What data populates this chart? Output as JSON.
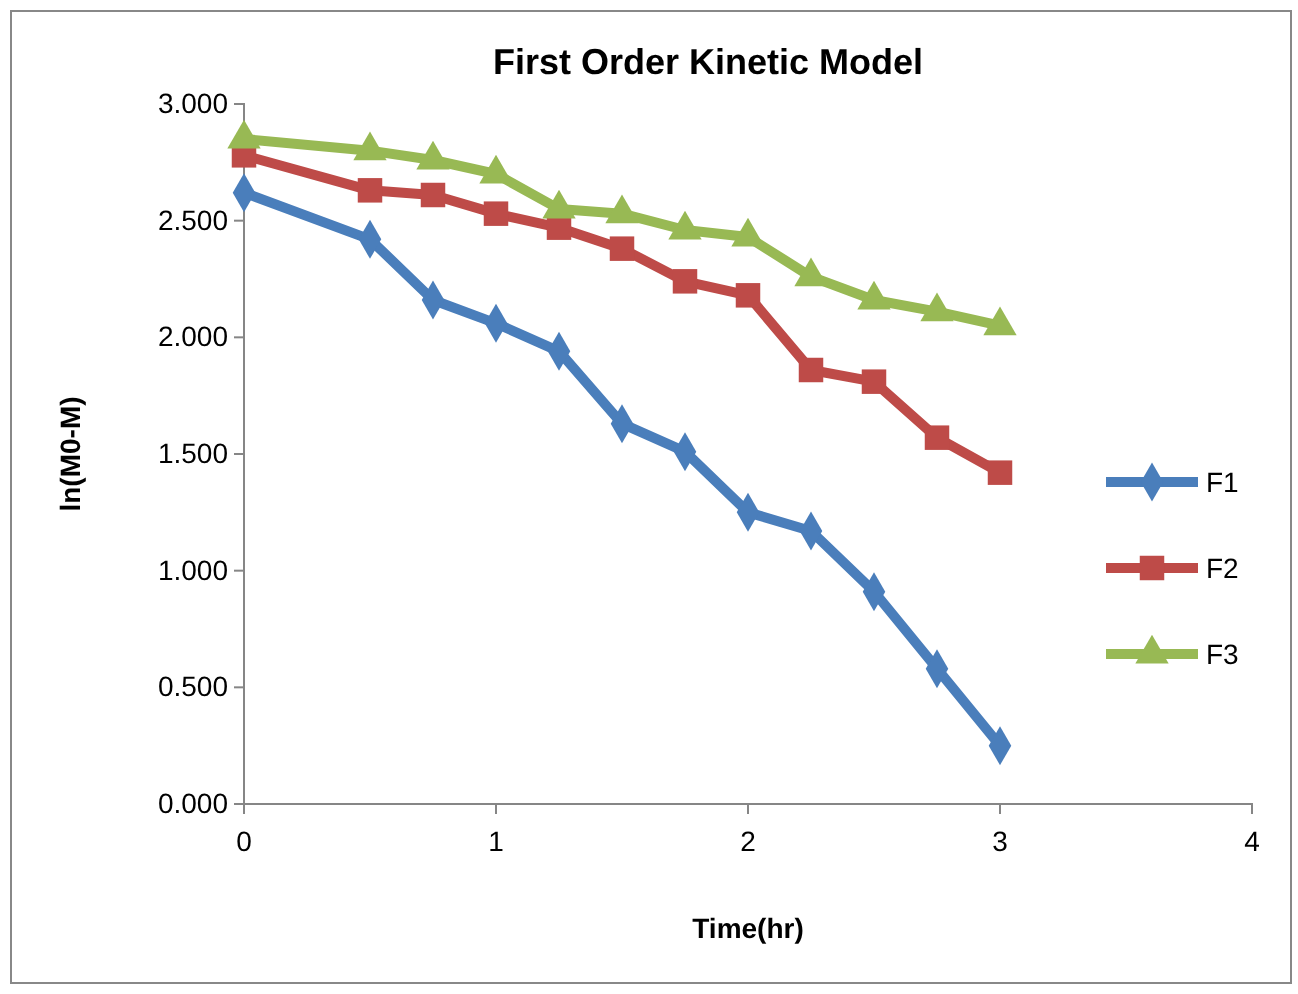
{
  "chart_data": {
    "type": "line",
    "title": "First Order Kinetic Model",
    "xlabel": "Time(hr)",
    "ylabel": "ln(M0-M)",
    "x": [
      0,
      0.5,
      0.75,
      1,
      1.25,
      1.5,
      1.75,
      2,
      2.25,
      2.5,
      2.75,
      3
    ],
    "series": [
      {
        "name": "F1",
        "color": "#4a7ebb",
        "marker": "diamond",
        "values": [
          2.62,
          2.42,
          2.16,
          2.06,
          1.94,
          1.63,
          1.51,
          1.25,
          1.17,
          0.91,
          0.58,
          0.25
        ]
      },
      {
        "name": "F2",
        "color": "#be4b48",
        "marker": "square",
        "values": [
          2.78,
          2.63,
          2.61,
          2.53,
          2.47,
          2.38,
          2.24,
          2.18,
          1.86,
          1.81,
          1.57,
          1.42
        ]
      },
      {
        "name": "F3",
        "color": "#98b954",
        "marker": "triangle",
        "values": [
          2.85,
          2.8,
          2.76,
          2.7,
          2.55,
          2.53,
          2.46,
          2.43,
          2.26,
          2.16,
          2.11,
          2.05
        ]
      }
    ],
    "xlim": [
      0,
      4
    ],
    "xticks": [
      0,
      1,
      2,
      3,
      4
    ],
    "ylim": [
      0,
      3
    ],
    "yticks": [
      {
        "value": 0,
        "label": "0.000"
      },
      {
        "value": 0.5,
        "label": "0.500"
      },
      {
        "value": 1,
        "label": "1.000"
      },
      {
        "value": 1.5,
        "label": "1.500"
      },
      {
        "value": 2,
        "label": "2.000"
      },
      {
        "value": 2.5,
        "label": "2.500"
      },
      {
        "value": 3,
        "label": "3.000"
      }
    ],
    "legend": "right",
    "grid": false
  }
}
